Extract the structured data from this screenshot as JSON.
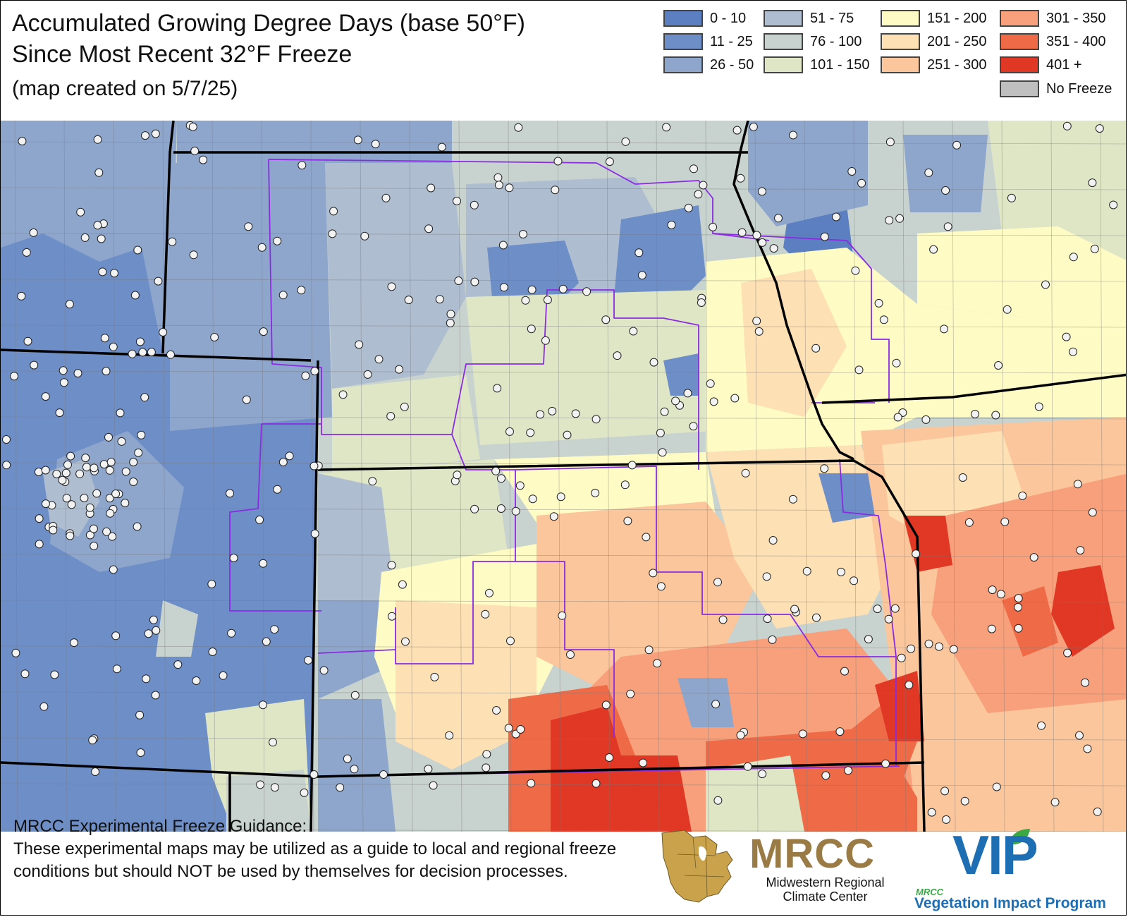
{
  "title": {
    "line1": "Accumulated Growing Degree Days (base 50°F)",
    "line2": "Since Most Recent 32°F Freeze",
    "created": "(map created on 5/7/25)"
  },
  "legend": [
    {
      "label": "0 - 10",
      "color": "#5b7fc0"
    },
    {
      "label": "11 - 25",
      "color": "#6e8ec8"
    },
    {
      "label": "26 - 50",
      "color": "#8ea6cc"
    },
    {
      "label": "51 - 75",
      "color": "#aebdcf"
    },
    {
      "label": "76 - 100",
      "color": "#c8d2cf"
    },
    {
      "label": "101 - 150",
      "color": "#dfe6c6"
    },
    {
      "label": "151 - 200",
      "color": "#fefcc4"
    },
    {
      "label": "201 - 250",
      "color": "#fde0b4"
    },
    {
      "label": "251 - 300",
      "color": "#fbc69b"
    },
    {
      "label": "301 - 350",
      "color": "#f7a07b"
    },
    {
      "label": "351 - 400",
      "color": "#ef6a47"
    },
    {
      "label": "401 +",
      "color": "#e03825"
    },
    {
      "label": "No Freeze",
      "color": "#bfbfbf"
    }
  ],
  "disclaimer": {
    "heading": "MRCC Experimental Freeze Guidance:",
    "body": "These experimental maps may be utilized as a guide to local and regional freeze conditions but should NOT be used by themselves for decision processes."
  },
  "logos": {
    "mrcc_word": "MRCC",
    "mrcc_sub": "Midwestern Regional Climate Center",
    "vip_small": "MRCC",
    "vip_word": "VIP",
    "vip_sub": "Vegetation Impact Program"
  },
  "colors": {
    "state_border": "#000000",
    "region_border": "#8a2be2",
    "county_line": "#777777",
    "station_fill": "#f2f2f2"
  }
}
